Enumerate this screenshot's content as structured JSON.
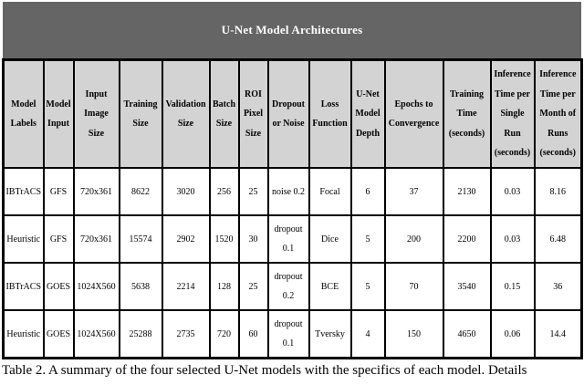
{
  "title_bar": {
    "text": "U-Net Model Architectures",
    "background_color": "#656565",
    "text_color": "#ffffff"
  },
  "table": {
    "header_background_color": "#d3d3d3",
    "border_color": "#000000",
    "columns": [
      "Model Labels",
      "Model Input",
      "Input Image Size",
      "Training Size",
      "Validation Size",
      "Batch Size",
      "ROI Pixel Size",
      "Dropout or Noise",
      "Loss Function",
      "U-Net Model Depth",
      "Epochs to Convergence",
      "Training Time (seconds)",
      "Inference Time per Single Run (seconds)",
      "Inference Time per Month of Runs (seconds)"
    ],
    "rows": [
      [
        "IBTrACS",
        "GFS",
        "720x361",
        "8622",
        "3020",
        "256",
        "25",
        "noise 0.2",
        "Focal",
        "6",
        "37",
        "2130",
        "0.03",
        "8.16"
      ],
      [
        "Heuristic",
        "GFS",
        "720x361",
        "15574",
        "2902",
        "1520",
        "30",
        "dropout 0.1",
        "Dice",
        "5",
        "200",
        "2200",
        "0.03",
        "6.48"
      ],
      [
        "IBTrACS",
        "GOES",
        "1024X560",
        "5638",
        "2214",
        "128",
        "25",
        "dropout 0.2",
        "BCE",
        "5",
        "70",
        "3540",
        "0.15",
        "36"
      ],
      [
        "Heuristic",
        "GOES",
        "1024X560",
        "25288",
        "2735",
        "720",
        "60",
        "dropout 0.1",
        "Tversky",
        "4",
        "150",
        "4650",
        "0.06",
        "14.4"
      ]
    ]
  },
  "caption": "Table 2. A summary of the four selected U-Net models with the specifics of each model. Details"
}
